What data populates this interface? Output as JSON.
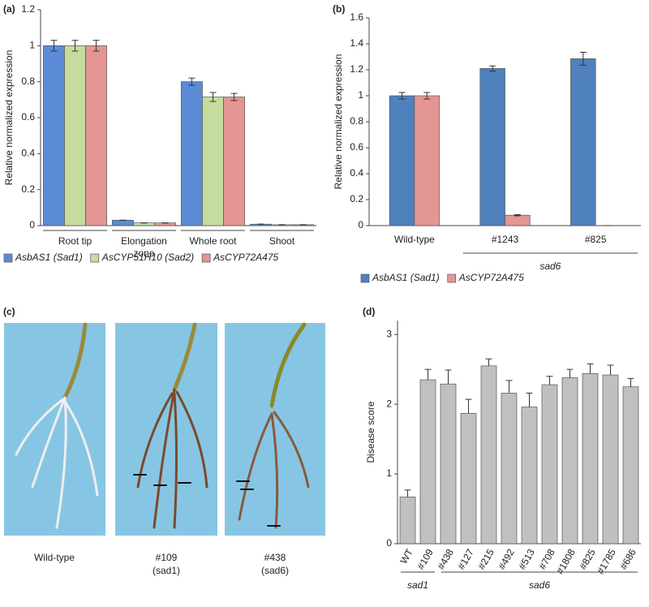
{
  "chart_data": [
    {
      "type": "bar",
      "panel_label": "(a)",
      "y_label": "Relative normalized expression",
      "categories": [
        "Root tip",
        "Elongation zone",
        "Whole root",
        "Shoot"
      ],
      "series": [
        {
          "name": "AsbAS1 (Sad1)",
          "color": "#5b8bd6",
          "values": [
            1,
            0.03,
            0.8,
            0.008
          ],
          "errors": [
            0.03,
            0,
            0.02,
            0
          ]
        },
        {
          "name": "AsCYP51H10 (Sad2)",
          "color": "#c5dc9e",
          "values": [
            1,
            0.015,
            0.715,
            0.005
          ],
          "errors": [
            0.03,
            0,
            0.025,
            0
          ]
        },
        {
          "name": "AsCYP72A475",
          "color": "#e39694",
          "values": [
            1,
            0.015,
            0.715,
            0.005
          ],
          "errors": [
            0.03,
            0,
            0.02,
            0
          ]
        }
      ],
      "ylim": [
        0,
        1.2
      ],
      "yticks": [
        0,
        0.2,
        0.4,
        0.6,
        0.8,
        1,
        1.2
      ],
      "category_brackets": true,
      "legend": "bottom"
    },
    {
      "type": "bar",
      "panel_label": "(b)",
      "y_label": "Relative normalized expression",
      "categories": [
        "Wild-type",
        "#1243",
        "#825"
      ],
      "series": [
        {
          "name": "AsbAS1 (Sad1)",
          "color": "#4f81bd",
          "values": [
            1,
            1.21,
            1.285
          ],
          "errors": [
            0.025,
            0.02,
            0.05
          ]
        },
        {
          "name": "AsCYP72A475",
          "color": "#e39694",
          "values": [
            1,
            0.08,
            0
          ],
          "errors": [
            0.025,
            0.005,
            0
          ]
        }
      ],
      "category_groups": [
        {
          "name": "sad6",
          "members": [
            "#1243",
            "#825"
          ]
        }
      ],
      "ylim": [
        0,
        1.6
      ],
      "yticks": [
        0,
        0.2,
        0.4,
        0.6,
        0.8,
        1,
        1.2,
        1.4,
        1.6
      ],
      "legend": "bottom"
    },
    {
      "type": "bar",
      "panel_label": "(d)",
      "y_label": "Disease score",
      "categories": [
        "WT",
        "#109",
        "#438",
        "#127",
        "#215",
        "#492",
        "#513",
        "#708",
        "#1808",
        "#825",
        "#1785",
        "#686"
      ],
      "series": [
        {
          "color": "#c0c0c0",
          "values": [
            0.67,
            2.35,
            2.29,
            1.87,
            2.55,
            2.16,
            1.96,
            2.28,
            2.38,
            2.44,
            2.42,
            2.25
          ],
          "errors": [
            0.1,
            0.15,
            0.2,
            0.2,
            0.1,
            0.18,
            0.2,
            0.12,
            0.12,
            0.14,
            0.14,
            0.12
          ]
        }
      ],
      "error_style": "upper",
      "tick_label_rotation": -60,
      "category_groups": [
        {
          "name": "sad1",
          "members": [
            "WT",
            "#109"
          ]
        },
        {
          "name": "sad6",
          "members": [
            "#438",
            "#127",
            "#215",
            "#492",
            "#513",
            "#708",
            "#1808",
            "#825",
            "#1785",
            "#686"
          ]
        }
      ],
      "ylim": [
        0,
        3.2
      ],
      "yticks": [
        0,
        1,
        2,
        3
      ]
    }
  ],
  "photo_panel": {
    "label": "(c)",
    "images": [
      {
        "caption": "Wild-type"
      },
      {
        "caption": "#109",
        "note": "(sad1)"
      },
      {
        "caption": "#438",
        "note": "(sad6)"
      }
    ]
  }
}
